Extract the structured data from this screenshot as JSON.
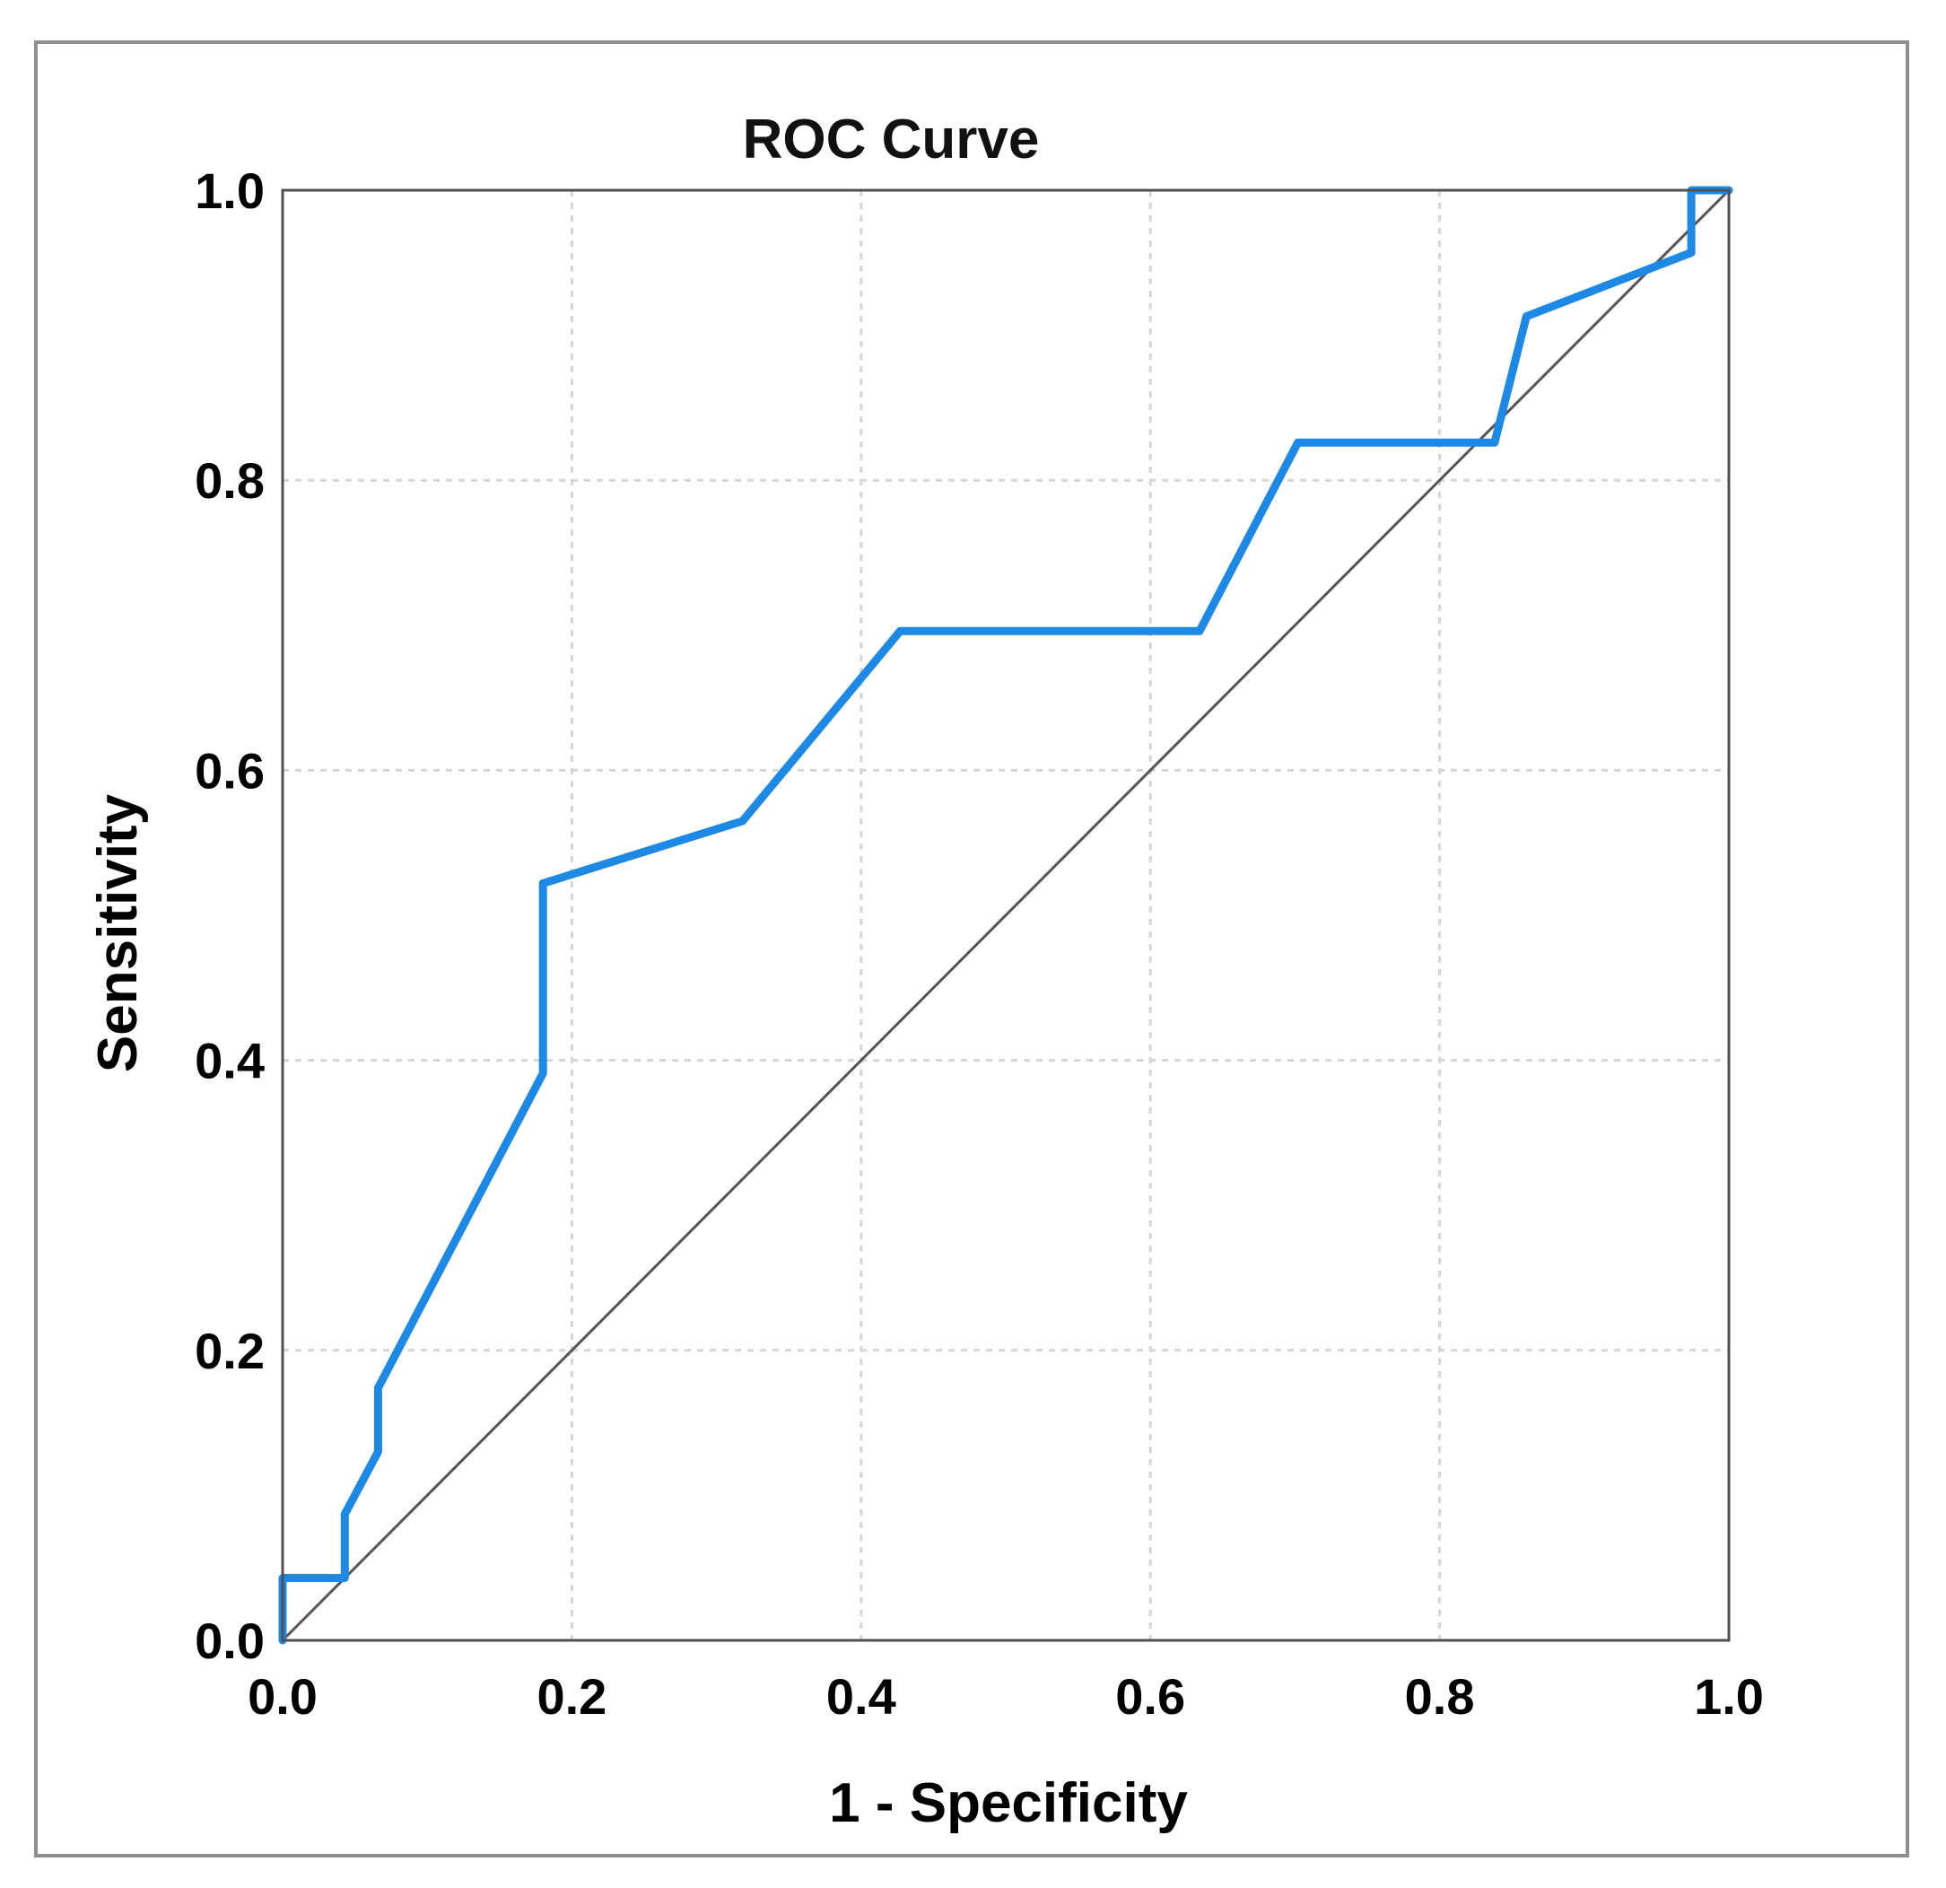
{
  "chart_data": {
    "type": "line",
    "title": "ROC Curve",
    "xlabel": "1 - Specificity",
    "ylabel": "Sensitivity",
    "xlim": [
      0.0,
      1.0
    ],
    "ylim": [
      0.0,
      1.0
    ],
    "grid": true,
    "x_ticks": [
      "0.0",
      "0.2",
      "0.4",
      "0.6",
      "0.8",
      "1.0"
    ],
    "y_ticks": [
      "0.0",
      "0.2",
      "0.4",
      "0.6",
      "0.8",
      "1.0"
    ],
    "series": [
      {
        "name": "ROC",
        "color": "#1e88e5",
        "points": [
          [
            0.0,
            0.0
          ],
          [
            0.0,
            0.043
          ],
          [
            0.043,
            0.043
          ],
          [
            0.043,
            0.087
          ],
          [
            0.066,
            0.13
          ],
          [
            0.066,
            0.174
          ],
          [
            0.18,
            0.391
          ],
          [
            0.18,
            0.522
          ],
          [
            0.318,
            0.565
          ],
          [
            0.427,
            0.696
          ],
          [
            0.634,
            0.696
          ],
          [
            0.702,
            0.826
          ],
          [
            0.838,
            0.826
          ],
          [
            0.86,
            0.913
          ],
          [
            0.974,
            0.957
          ],
          [
            0.974,
            1.0
          ],
          [
            1.0,
            1.0
          ]
        ]
      },
      {
        "name": "Reference Line",
        "color": "#555555",
        "points": [
          [
            0.0,
            0.0
          ],
          [
            1.0,
            1.0
          ]
        ]
      }
    ]
  }
}
